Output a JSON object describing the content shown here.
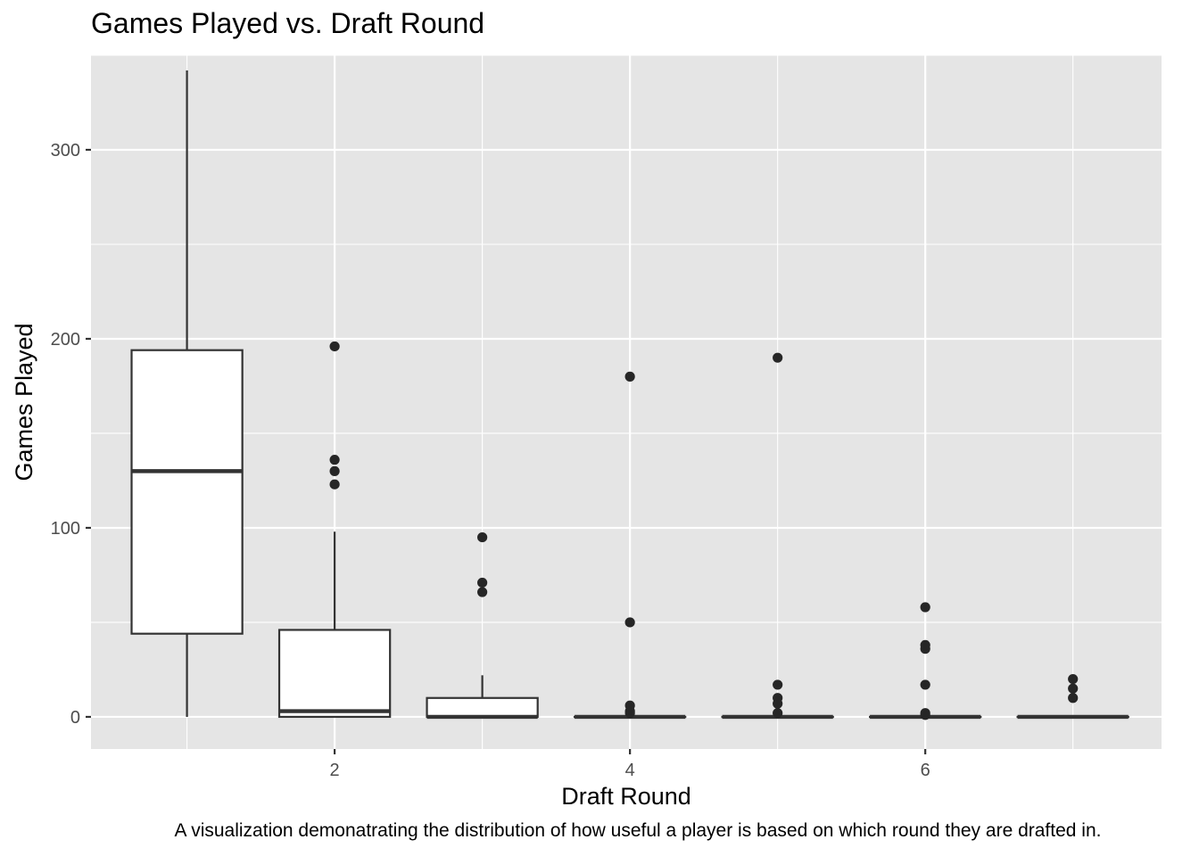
{
  "chart_data": {
    "type": "box",
    "title": "Games Played vs. Draft Round",
    "xlabel": "Draft Round",
    "ylabel": "Games Played",
    "caption": "A visualization demonatrating the distribution of how useful a player is based on which round they are drafted in.",
    "xlim": [
      0.35,
      7.6
    ],
    "ylim": [
      -17,
      350
    ],
    "x_ticks": [
      2,
      4,
      6
    ],
    "y_ticks": [
      0,
      100,
      200,
      300
    ],
    "x_minor": [
      1,
      3,
      5,
      7
    ],
    "y_minor": [
      50,
      150,
      250,
      350
    ],
    "grid": true,
    "colors": {
      "panel": "#e5e5e5",
      "grid": "#ffffff",
      "box_fill": "#ffffff",
      "box_line": "#333333",
      "outlier": "#262626"
    },
    "boxes": [
      {
        "round": 1,
        "min": 0,
        "q1": 44,
        "median": 130,
        "q3": 194,
        "max": 342,
        "outliers": []
      },
      {
        "round": 2,
        "min": 0,
        "q1": 0,
        "median": 3,
        "q3": 46,
        "max": 98,
        "outliers": [
          123,
          130,
          136,
          196
        ]
      },
      {
        "round": 3,
        "min": 0,
        "q1": 0,
        "median": 0,
        "q3": 10,
        "max": 22,
        "outliers": [
          66,
          71,
          95
        ]
      },
      {
        "round": 4,
        "min": 0,
        "q1": 0,
        "median": 0,
        "q3": 0,
        "max": 0,
        "outliers": [
          2,
          3,
          6,
          50,
          180
        ]
      },
      {
        "round": 5,
        "min": 0,
        "q1": 0,
        "median": 0,
        "q3": 0,
        "max": 0,
        "outliers": [
          2,
          7,
          10,
          17,
          190
        ]
      },
      {
        "round": 6,
        "min": 0,
        "q1": 0,
        "median": 0,
        "q3": 0,
        "max": 0,
        "outliers": [
          1,
          2,
          17,
          36,
          38,
          58
        ]
      },
      {
        "round": 7,
        "min": 0,
        "q1": 0,
        "median": 0,
        "q3": 0,
        "max": 0,
        "outliers": [
          10,
          15,
          20
        ]
      }
    ]
  }
}
